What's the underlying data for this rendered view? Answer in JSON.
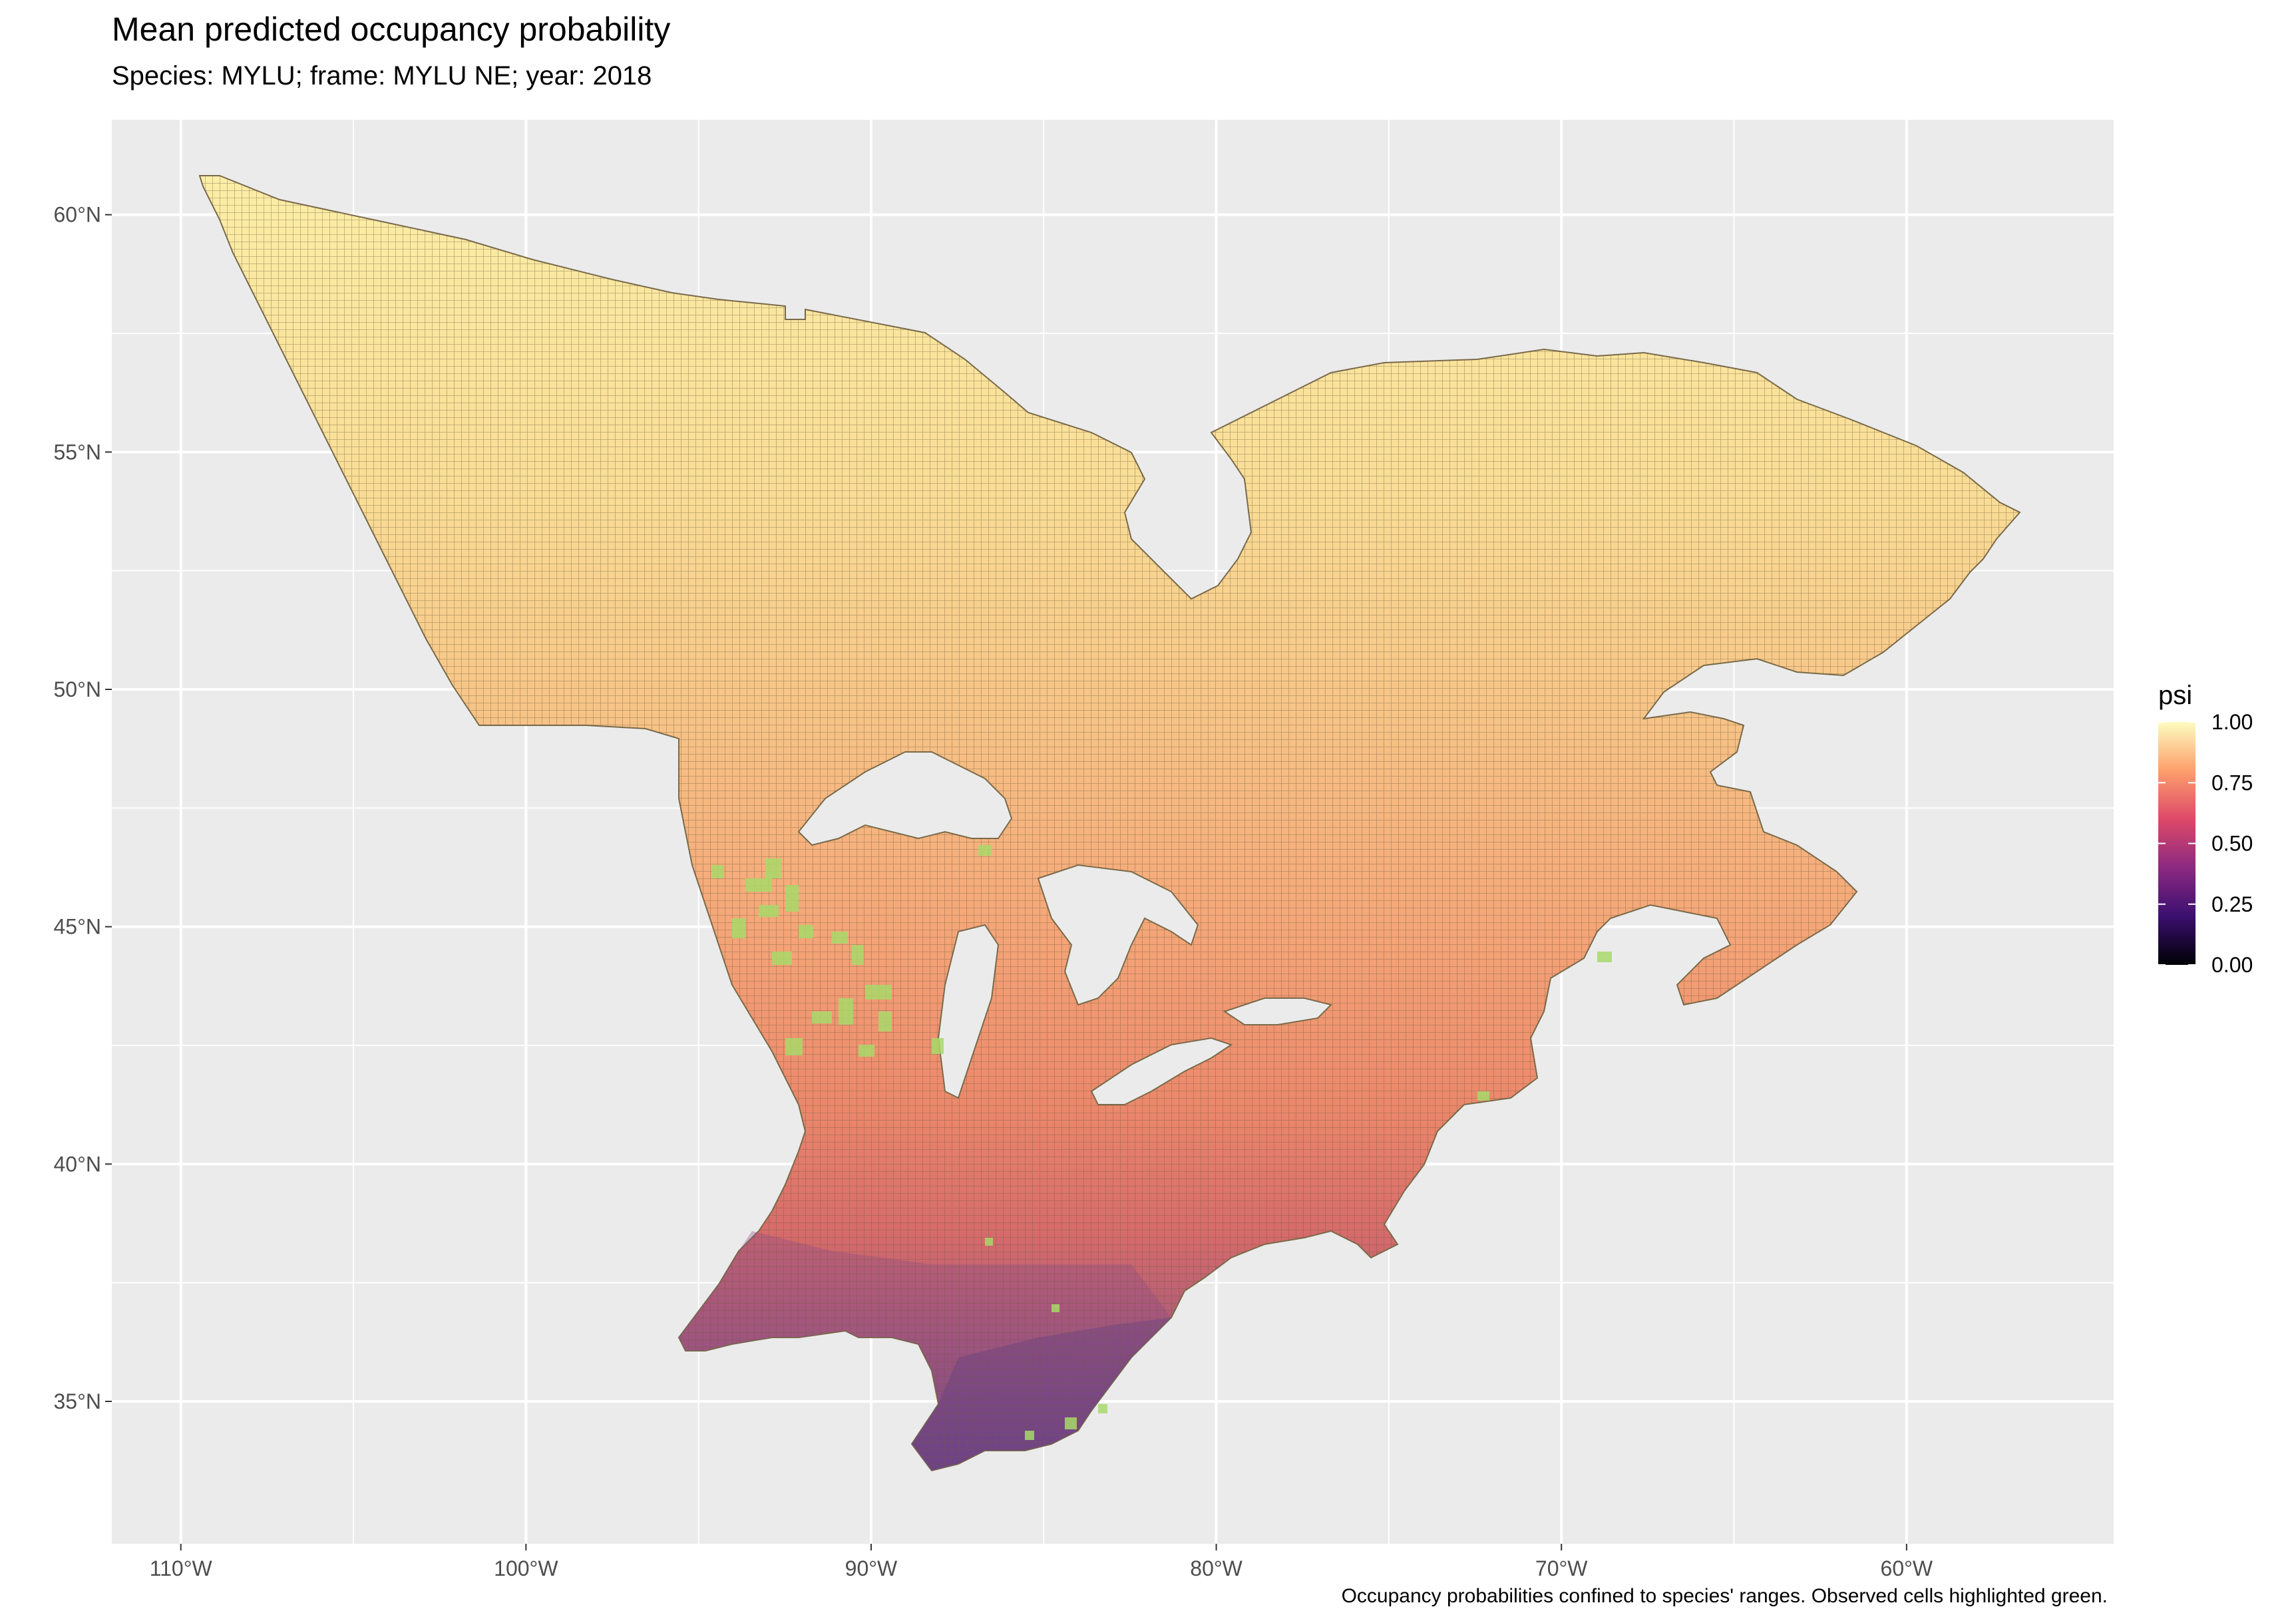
{
  "title": "Mean predicted occupancy probability",
  "subtitle": "Species: MYLU; frame: MYLU NE; year: 2018",
  "caption": "Occupancy probabilities confined to species' ranges. Observed cells highlighted green.",
  "chart_data": {
    "type": "map",
    "xlim": [
      -112,
      -54
    ],
    "ylim": [
      32,
      62
    ],
    "x_ticks": [
      {
        "value": -110,
        "label": "110°W"
      },
      {
        "value": -100,
        "label": "100°W"
      },
      {
        "value": -90,
        "label": "90°W"
      },
      {
        "value": -80,
        "label": "80°W"
      },
      {
        "value": -70,
        "label": "70°W"
      },
      {
        "value": -60,
        "label": "60°W"
      }
    ],
    "y_ticks": [
      {
        "value": 60,
        "label": "60°N"
      },
      {
        "value": 55,
        "label": "55°N"
      },
      {
        "value": 50,
        "label": "50°N"
      },
      {
        "value": 45,
        "label": "45°N"
      },
      {
        "value": 40,
        "label": "40°N"
      },
      {
        "value": 35,
        "label": "35°N"
      }
    ],
    "grid": true,
    "legend": {
      "title": "psi",
      "position": "right",
      "range": [
        0,
        1
      ],
      "ticks": [
        "1.00",
        "0.75",
        "0.50",
        "0.25",
        "0.00"
      ],
      "colors": [
        "#000004",
        "#3b0f70",
        "#8c2981",
        "#de4968",
        "#fe9f6d",
        "#fcfdbf"
      ]
    },
    "observed_color": "#a8d96a"
  }
}
